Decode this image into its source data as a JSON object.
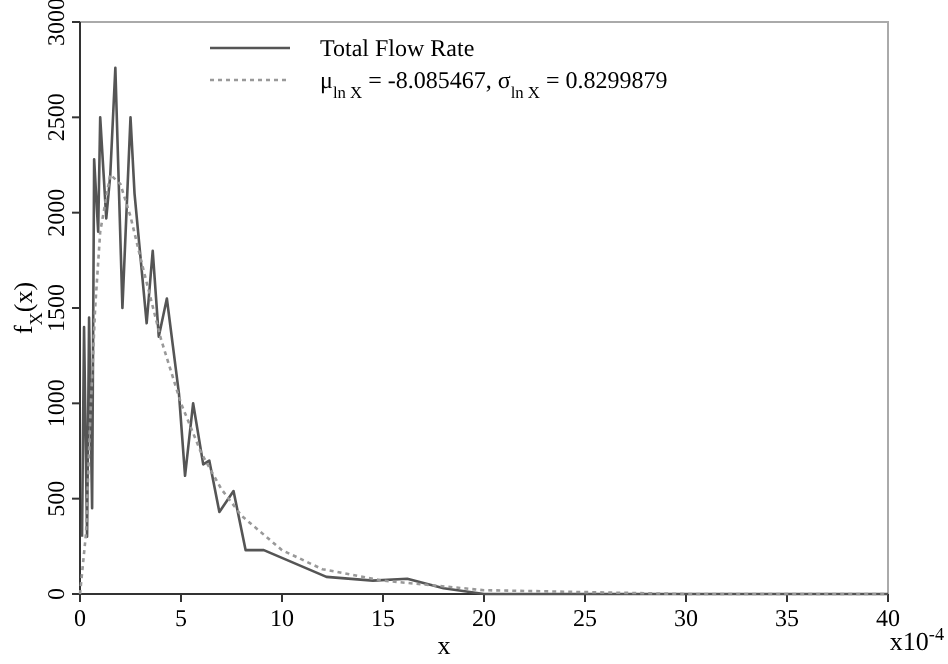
{
  "chart_data": {
    "type": "line",
    "xlabel": "x",
    "ylabel": "f$_{X}$(x)",
    "annotations": [
      "x10$^{-4}$"
    ],
    "xlim": [
      0,
      40
    ],
    "ylim": [
      0,
      3000
    ],
    "xticks": [
      0,
      5,
      10,
      15,
      20,
      25,
      30,
      35,
      40
    ],
    "yticks": [
      0,
      500,
      1000,
      1500,
      2000,
      2500,
      3000
    ],
    "grid": false,
    "legend": "top",
    "series": [
      {
        "name": "Total Flow Rate",
        "color": "#555555",
        "line_style": "solid",
        "x": [
          0.1,
          0.2,
          0.35,
          0.45,
          0.6,
          0.7,
          0.9,
          1.0,
          1.3,
          1.5,
          1.75,
          2.1,
          2.5,
          2.7,
          3.3,
          3.6,
          3.9,
          4.3,
          4.6,
          4.9,
          5.2,
          5.6,
          6.1,
          6.4,
          6.9,
          7.6,
          8.2,
          9.1,
          12.2,
          14.5,
          16.2,
          18,
          20,
          25,
          30,
          35,
          40
        ],
        "values": [
          300,
          1400,
          300,
          1450,
          450,
          2280,
          1900,
          2500,
          1970,
          2200,
          2760,
          1500,
          2500,
          2100,
          1420,
          1800,
          1350,
          1550,
          1300,
          1050,
          620,
          1000,
          680,
          700,
          430,
          540,
          230,
          230,
          90,
          70,
          80,
          30,
          0,
          0,
          0,
          0,
          0
        ]
      },
      {
        "name": "μ$_{ln X}$ = -8.085467, σ$_{ln X}$ = 0.8299879",
        "color": "#999999",
        "line_style": "dotted",
        "x": [
          0,
          0.3,
          0.5,
          0.75,
          1,
          1.5,
          2,
          2.5,
          3,
          4,
          5,
          6,
          7,
          8,
          10,
          12,
          15,
          20,
          25,
          30,
          40
        ],
        "values": [
          0,
          320,
          900,
          1500,
          1900,
          2200,
          2150,
          1980,
          1760,
          1340,
          1000,
          740,
          550,
          410,
          230,
          130,
          70,
          20,
          10,
          0,
          0
        ]
      }
    ]
  }
}
